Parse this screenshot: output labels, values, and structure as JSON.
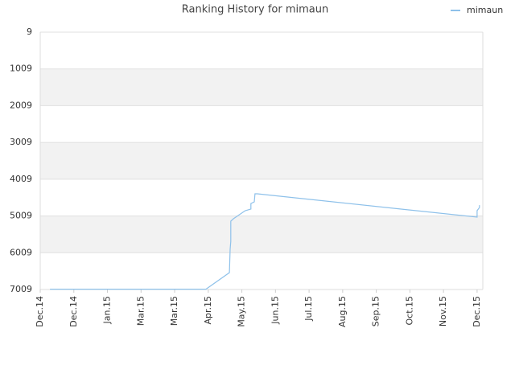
{
  "chart_data": {
    "type": "line",
    "title": "Ranking History for mimaun",
    "series": [
      {
        "name": "mimaun",
        "color": "#8ec1ea",
        "x": [
          0.29,
          4.93,
          5.63,
          5.65,
          5.67,
          5.67,
          5.75,
          6.1,
          6.27,
          6.27,
          6.37,
          6.39,
          6.46,
          13.0,
          13.0,
          13.07,
          13.07
        ],
        "values": [
          7000,
          7000,
          6550,
          5915,
          5700,
          5150,
          5084,
          4865,
          4820,
          4670,
          4625,
          4405,
          4405,
          5040,
          4865,
          4780,
          4715
        ]
      }
    ],
    "xlim": [
      0,
      13.17
    ],
    "xticks": [
      {
        "value": 0,
        "label": "Dec.14"
      },
      {
        "value": 1,
        "label": "Dec.14"
      },
      {
        "value": 2,
        "label": "Jan.15"
      },
      {
        "value": 3,
        "label": "Mar.15"
      },
      {
        "value": 4,
        "label": "Mar.15"
      },
      {
        "value": 5,
        "label": "Apr.15"
      },
      {
        "value": 6,
        "label": "May.15"
      },
      {
        "value": 7,
        "label": "Jun.15"
      },
      {
        "value": 8,
        "label": "Jul.15"
      },
      {
        "value": 9,
        "label": "Aug.15"
      },
      {
        "value": 10,
        "label": "Sep.15"
      },
      {
        "value": 11,
        "label": "Oct.15"
      },
      {
        "value": 12,
        "label": "Nov.15"
      },
      {
        "value": 13,
        "label": "Dec.15"
      }
    ],
    "ylim": [
      7009,
      9
    ],
    "yticks": [
      9,
      1009,
      2009,
      3009,
      4009,
      5009,
      6009,
      7009
    ],
    "grid": true,
    "legend": "top-right"
  }
}
